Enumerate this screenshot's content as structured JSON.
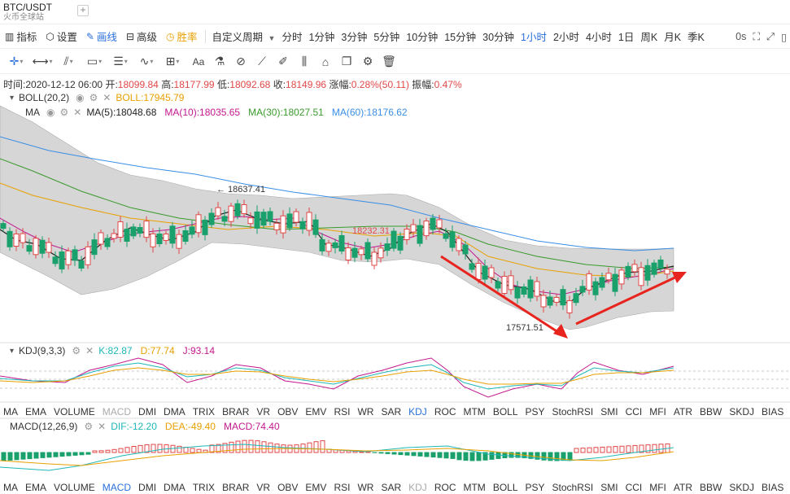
{
  "tabbar": {
    "symbol": "BTC/USDT",
    "exchange": "火币全球站",
    "add_label": "+"
  },
  "toolbar": {
    "items": [
      {
        "label": "指标",
        "icon": "indicator-icon",
        "color": "normal"
      },
      {
        "label": "设置",
        "icon": "gear-icon",
        "color": "normal"
      },
      {
        "label": "画线",
        "icon": "pencil-icon",
        "color": "blue"
      },
      {
        "label": "高级",
        "icon": "advanced-icon",
        "color": "normal"
      },
      {
        "label": "胜率",
        "icon": "winrate-icon",
        "color": "orange"
      }
    ],
    "custom_period": "自定义周期",
    "periods": [
      "分时",
      "1分钟",
      "3分钟",
      "5分钟",
      "10分钟",
      "15分钟",
      "30分钟",
      "1小时",
      "2小时",
      "4小时",
      "1日",
      "周K",
      "月K",
      "季K"
    ],
    "active_period": "1小时",
    "refresh": "0s"
  },
  "info": {
    "time_label": "时间:",
    "time": "2020-12-12 06:00",
    "open_label": "开:",
    "open": "18099.84",
    "high_label": "高:",
    "high": "18177.99",
    "low_label": "低:",
    "low": "18092.68",
    "close_label": "收:",
    "close": "18149.96",
    "change_label": "涨幅:",
    "change": "0.28%(50.11)",
    "amp_label": "振幅:",
    "amp": "0.47%"
  },
  "boll": {
    "name": "BOLL(20,2)",
    "value": "BOLL:17945.79",
    "color": "#e8a000"
  },
  "ma": {
    "name": "MA",
    "ma5": "MA(5):18048.68",
    "ma10": "MA(10):18035.65",
    "ma30": "MA(30):18027.51",
    "ma60": "MA(60):18176.62",
    "colors": {
      "ma5": "#222222",
      "ma10": "#c2188e",
      "ma30": "#3a9a2c",
      "ma60": "#3a8ee6"
    }
  },
  "annotations": {
    "high": "18637.41",
    "mid": "18232.31",
    "low": "17571.51"
  },
  "kdj": {
    "name": "KDJ(9,3,3)",
    "k": "K:82.87",
    "d": "D:77.74",
    "j": "J:93.14"
  },
  "macd": {
    "name": "MACD(12,26,9)",
    "dif": "DIF:-12.20",
    "dea": "DEA:-49.40",
    "macd": "MACD:74.40"
  },
  "indicator_tabs": [
    "MA",
    "EMA",
    "VOLUME",
    "MACD",
    "DMI",
    "DMA",
    "TRIX",
    "BRAR",
    "VR",
    "OBV",
    "EMV",
    "RSI",
    "WR",
    "SAR",
    "KDJ",
    "ROC",
    "MTM",
    "BOLL",
    "PSY",
    "StochRSI",
    "SMI",
    "CCI",
    "MFI",
    "ATR",
    "BBW",
    "SKDJ",
    "BIAS"
  ],
  "tabs_row1_active": "KDJ",
  "tabs_row1_dim": "MACD",
  "tabs_row2_active": "MACD",
  "tabs_row2_dim": "KDJ",
  "colors": {
    "up": "#e04848",
    "down": "#1aa06a",
    "accent": "#2a6fdb",
    "band": "#c8c8c8"
  }
}
